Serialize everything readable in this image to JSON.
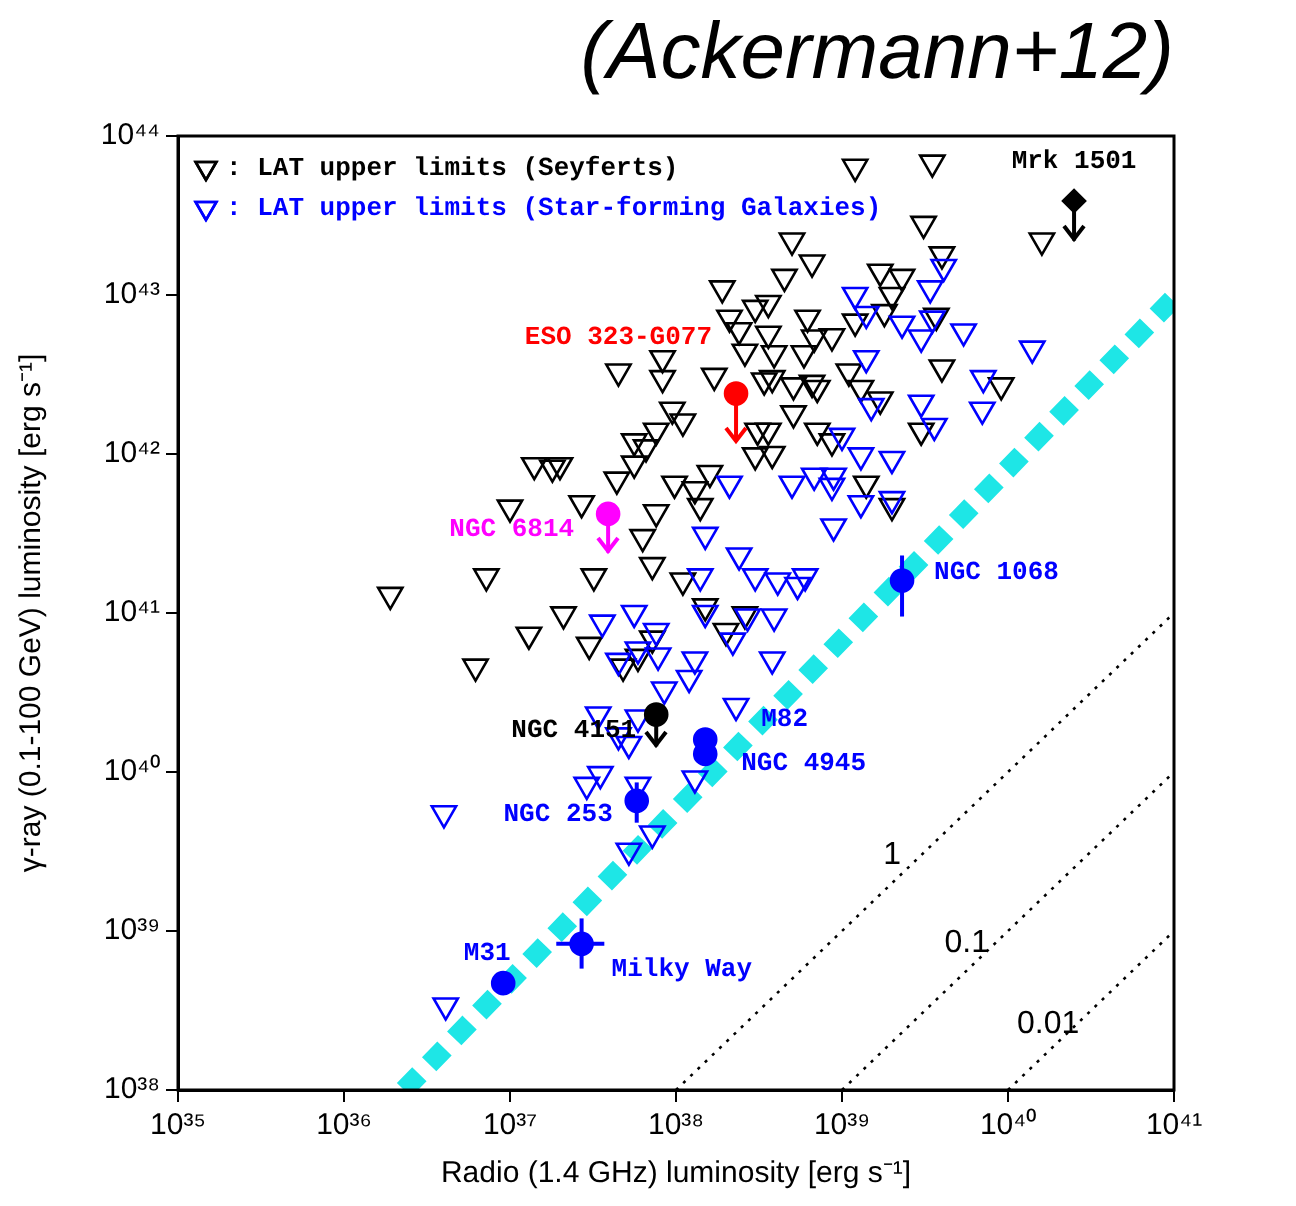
{
  "chart_data": {
    "type": "scatter",
    "title": "(Ackermann+12)",
    "xlabel": "Radio (1.4 GHz) luminosity [erg s⁻¹]",
    "ylabel": "γ-ray (0.1-100 GeV) luminosity [erg s⁻¹]",
    "log": "xy",
    "grid": false,
    "legend": "top left",
    "xlim": [
      1e+35,
      1e+41
    ],
    "ylim": [
      1e+38,
      1e+44
    ],
    "xticks": [
      {
        "value": 1e+35,
        "label": "10³⁵"
      },
      {
        "value": 1e+36,
        "label": "10³⁶"
      },
      {
        "value": 1e+37,
        "label": "10³⁷"
      },
      {
        "value": 1e+38,
        "label": "10³⁸"
      },
      {
        "value": 1e+39,
        "label": "10³⁹"
      },
      {
        "value": 1e+40,
        "label": "10⁴⁰"
      },
      {
        "value": 1e+41,
        "label": "10⁴¹"
      }
    ],
    "yticks": [
      {
        "value": 1e+38,
        "label": "10³⁸"
      },
      {
        "value": 1e+39,
        "label": "10³⁹"
      },
      {
        "value": 1e+40,
        "label": "10⁴⁰"
      },
      {
        "value": 1e+41,
        "label": "10⁴¹"
      },
      {
        "value": 1e+42,
        "label": "10⁴²"
      },
      {
        "value": 1e+43,
        "label": "10⁴³"
      },
      {
        "value": 1e+44,
        "label": "10⁴⁴"
      }
    ],
    "series": [
      {
        "name": "1",
        "type": "line",
        "color": "#000000",
        "line_style": "dotted",
        "marker": "none",
        "x": [
          1e+38,
          1e+41
        ],
        "values": [
          1e+38,
          1e+41
        ]
      },
      {
        "name": "0.1",
        "type": "line",
        "color": "#000000",
        "line_style": "dotted",
        "marker": "none",
        "x": [
          1e+39,
          1e+41
        ],
        "values": [
          1e+38,
          1e+40
        ]
      },
      {
        "name": "0.01",
        "type": "line",
        "color": "#000000",
        "line_style": "dotted",
        "marker": "none",
        "x": [
          1e+40,
          1e+41
        ],
        "values": [
          1e+38,
          1e+39
        ]
      },
      {
        "type": "line",
        "color": "#1ee6e6",
        "line_style": "dashed",
        "marker": "none",
        "x": [
          2.3e+36,
          1e+41
        ],
        "values": [
          1e+38,
          9.6e+42
        ]
      },
      {
        "name": ": LAT upper limits (Seyferts)",
        "color": "#000000",
        "marker": "triangle",
        "x": [
          1.9e+36,
          7.2e+36,
          3.2e+37,
          7.2e+37,
          6.3e+37,
          7.6e+37,
          2.7e+37,
          1e+37,
          1.4e+37,
          1.8e+37,
          2e+37,
          4.4e+37,
          9.8e+37,
          5.6e+37,
          6.6e+37,
          5.6e+37,
          7.6e+37,
          9.5e+37,
          8.3e+37,
          8.3e+37,
          4.5e+37,
          2.1e+37,
          1.3e+37,
          3e+37,
          6.2e+36,
          4.8e+37,
          5.9e+37,
          7.2e+37,
          1.2e+39,
          3.5e+39,
          3.1e+39,
          1.6e+40,
          5e+38,
          6.6e+38,
          4e+39,
          1.9e+38,
          4.5e+38,
          1.7e+39,
          2.3e+39,
          2e+39,
          3e+38,
          3.6e+38,
          2.1e+38,
          2.4e+38,
          6.2e+38,
          1.2e+39,
          1.8e+39,
          3.7e+39,
          3.6e+38,
          6.8e+38,
          8.7e+38,
          2.6e+38,
          3.9e+38,
          5.9e+38,
          1.7e+38,
          3.4e+38,
          3.8e+38,
          5.1e+38,
          6.6e+38,
          7.1e+38,
          1.1e+39,
          4e+39,
          1.3e+39,
          1.7e+39,
          9.1e+39,
          1.1e+38,
          3.1e+38,
          3.6e+38,
          5.1e+38,
          7.1e+38,
          8.7e+38,
          3e+38,
          3.8e+38,
          3e+39,
          1.6e+38,
          1.3e+38,
          1.4e+38,
          1.4e+39,
          2e+39,
          1.1e+38,
          1.5e+38,
          2.6e+38,
          2e+38
        ],
        "values": [
          1.3e+41,
          1.7e+41,
          1.7e+41,
          2e+41,
          3e+41,
          4.3e+41,
          4.9e+41,
          4.6e+41,
          8.5e+41,
          8.2e+41,
          8.5e+41,
          6.9e+41,
          6.5e+41,
          8.7e+41,
          1.1e+42,
          1.2e+42,
          1.4e+42,
          1.9e+42,
          3e+42,
          4e+42,
          3.3e+42,
          9.8e+40,
          7.3e+40,
          6.3e+40,
          4.6e+40,
          4.6e+40,
          5.3e+40,
          6.9e+40,
          6.4e+43,
          6.8e+43,
          2.8e+43,
          2.2e+43,
          2.2e+43,
          1.6e+43,
          1.8e+43,
          1.1e+43,
          1.3e+43,
          1.4e+43,
          1.3e+43,
          1e+43,
          8.3e+42,
          8.9e+42,
          7.2e+42,
          6e+42,
          7.2e+42,
          6.8e+42,
          7.8e+42,
          7.4e+42,
          5.7e+42,
          5.4e+42,
          5.5e+42,
          4.4e+42,
          4.3e+42,
          4.3e+42,
          3.1e+42,
          2.9e+42,
          3e+42,
          2.7e+42,
          2.8e+42,
          2.6e+42,
          3.3e+42,
          3.5e+42,
          2.6e+42,
          2.2e+42,
          2.7e+42,
          1.6e+42,
          1.4e+42,
          1.4e+42,
          1.8e+42,
          1.4e+42,
          1.2e+42,
          9.8e+41,
          1e+42,
          1.4e+42,
          7.6e+41,
          6e+41,
          4.7e+41,
          6.5e+41,
          4.7e+41,
          1.6e+41,
          1.1e+41,
          9.8e+40,
          7.7e+40
        ]
      },
      {
        "name": ": LAT upper limits (Star-forming Galaxies)",
        "color": "#0000ff",
        "marker": "triangle",
        "x": [
          3.6e+37,
          5.6e+37,
          7.6e+37,
          4.5e+37,
          5.9e+37,
          7.8e+37,
          8.5e+37,
          3.4e+37,
          4.5e+37,
          5.2e+37,
          5.9e+37,
          2.9e+37,
          3.5e+37,
          5.9e+37,
          4e+36,
          7.2e+37,
          5.2e+37,
          4.1e+36,
          1.2e+39,
          3.4e+39,
          4.1e+39,
          1.4e+39,
          2.3e+39,
          3.5e+39,
          3e+39,
          5.4e+39,
          1.4e+40,
          1.4e+39,
          7.1e+39,
          1.5e+39,
          3e+39,
          7e+39,
          3.6e+39,
          1e+39,
          1.3e+39,
          2e+39,
          2.1e+38,
          5e+38,
          6.8e+38,
          8.9e+38,
          8.7e+38,
          1.3e+39,
          2e+39,
          8.9e+38,
          1.5e+38,
          2.4e+38,
          3e+38,
          4.1e+38,
          6e+38,
          5.4e+38,
          1.4e+38,
          1.5e+38,
          1.3e+38,
          1.2e+38,
          2.2e+38,
          2.7e+38,
          3.8e+38,
          3.9e+38,
          2.3e+38,
          1.3e+38
        ],
        "values": [
          8.7e+40,
          1e+41,
          7.7e+40,
          5e+40,
          5.9e+40,
          5.4e+40,
          3.3e+40,
          2.3e+40,
          1.7e+40,
          1.5e+40,
          2.2e+40,
          8.3e+39,
          9.7e+39,
          8.3e+39,
          5.5e+39,
          4.1e+39,
          3.2e+39,
          3.4e+38,
          1e+43,
          1.1e+43,
          1.5e+43,
          7.6e+42,
          6.6e+42,
          7.1e+42,
          5.4e+42,
          5.9e+42,
          4.6e+42,
          4e+42,
          3e+42,
          2e+42,
          2.1e+42,
          1.9e+42,
          1.5e+42,
          1.3e+42,
          9.8e+41,
          9.3e+41,
          6.5e+41,
          6.5e+41,
          7.3e+41,
          7.3e+41,
          6.3e+41,
          4.9e+41,
          5.2e+41,
          3.5e+41,
          3.1e+41,
          2.3e+41,
          1.7e+41,
          1.6e+41,
          1.7e+41,
          1.5e+41,
          1.7e+41,
          1e+41,
          5.1e+40,
          3.9e+40,
          6.7e+40,
          9.5e+40,
          5.1e+40,
          9.5e+40,
          2.6e+40,
          9.1e+39
        ]
      },
      {
        "name": "NGC 1068",
        "color": "#0000ff",
        "marker": "circle",
        "x": [
          2.3e+39
        ],
        "values": [
          1.6e+41
        ],
        "errors": [
          [
            9.5e+40,
            2.3e+41
          ]
        ]
      },
      {
        "name": "M82",
        "color": "#0000ff",
        "marker": "circle",
        "x": [
          1.5e+38
        ],
        "values": [
          1.6e+40
        ]
      },
      {
        "name": "NGC 4945",
        "color": "#0000ff",
        "marker": "circle",
        "x": [
          1.5e+38
        ],
        "values": [
          1.3e+40
        ]
      },
      {
        "name": "NGC 253",
        "color": "#0000ff",
        "marker": "circle",
        "x": [
          5.8e+37
        ],
        "values": [
          6.6e+39
        ],
        "errors": [
          [
            4.8e+39,
            8.6e+39
          ]
        ]
      },
      {
        "name": "NGC 4151",
        "color": "#000000",
        "marker": "circle",
        "x": [
          7.6e+37
        ],
        "values": [
          2.3e+40
        ],
        "errors": [
          [
            1.45e+40,
            2.3e+40
          ]
        ]
      },
      {
        "name": "M31",
        "color": "#0000ff",
        "marker": "circle",
        "x": [
          9.1e+36
        ],
        "values": [
          4.7e+38
        ]
      },
      {
        "name": "Milky Way",
        "color": "#0000ff",
        "marker": "circle",
        "x": [
          2.7e+37
        ],
        "values": [
          8.3e+38
        ],
        "errors": [
          [
            5.8e+38,
            1.2e+39
          ]
        ],
        "xerrors": [
          [
            1.9e+37,
            3.7e+37
          ]
        ]
      },
      {
        "name": "ESO 323-G077",
        "color": "#ff0000",
        "marker": "circle",
        "x": [
          2.3e+38
        ],
        "values": [
          2.4e+42
        ],
        "errors": [
          [
            1.2e+42,
            2.4e+42
          ]
        ]
      },
      {
        "name": "NGC 6814",
        "color": "#ff00ff",
        "marker": "circle",
        "x": [
          3.9e+37
        ],
        "values": [
          4.2e+41
        ],
        "errors": [
          [
            2.4e+41,
            4.2e+41
          ]
        ]
      },
      {
        "name": "Mrk 1501",
        "color": "#000000",
        "marker": "diamond",
        "x": [
          2.5e+40
        ],
        "values": [
          3.9e+43
        ],
        "errors": [
          [
            2.2e+43,
            3.9e+43
          ]
        ]
      }
    ]
  }
}
